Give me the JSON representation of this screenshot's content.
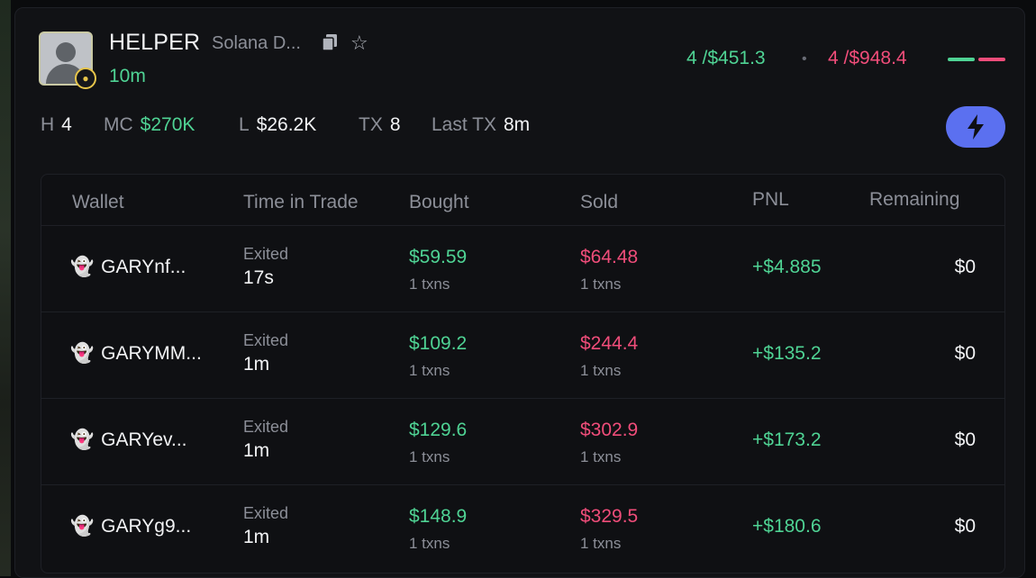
{
  "token": {
    "name": "HELPER",
    "subtitle": "Solana D...",
    "age": "10m",
    "icons": {
      "copy": "copy-icon",
      "star": "star-icon",
      "badge": "pill-icon"
    }
  },
  "summary": {
    "buys": "4 /$451.3",
    "separator": "•",
    "sells": "4 /$948.4",
    "colors": {
      "buy": "#4fd394",
      "sell": "#f04d7a"
    }
  },
  "stats": [
    {
      "label": "H",
      "value": "4"
    },
    {
      "label": "MC",
      "value": "$270K"
    },
    {
      "label": "L",
      "value": "$26.2K"
    },
    {
      "label": "TX",
      "value": "8"
    },
    {
      "label": "Last TX",
      "value": "8m"
    }
  ],
  "action": {
    "icon": "lightning-bolt-icon",
    "color": "#5b70f0"
  },
  "table": {
    "headers": {
      "wallet": "Wallet",
      "time": "Time in Trade",
      "bought": "Bought",
      "sold": "Sold",
      "pnl": "PNL",
      "remaining": "Remaining"
    },
    "rows": [
      {
        "ghost": "👻",
        "wallet": "GARYnf...",
        "status": "Exited",
        "duration": "17s",
        "bought": "$59.59",
        "bought_txns": "1 txns",
        "sold": "$64.48",
        "sold_txns": "1 txns",
        "pnl": "+$4.885",
        "remaining": "$0"
      },
      {
        "ghost": "👻",
        "wallet": "GARYMM...",
        "status": "Exited",
        "duration": "1m",
        "bought": "$109.2",
        "bought_txns": "1 txns",
        "sold": "$244.4",
        "sold_txns": "1 txns",
        "pnl": "+$135.2",
        "remaining": "$0"
      },
      {
        "ghost": "👻",
        "wallet": "GARYev...",
        "status": "Exited",
        "duration": "1m",
        "bought": "$129.6",
        "bought_txns": "1 txns",
        "sold": "$302.9",
        "sold_txns": "1 txns",
        "pnl": "+$173.2",
        "remaining": "$0"
      },
      {
        "ghost": "👻",
        "wallet": "GARYg9...",
        "status": "Exited",
        "duration": "1m",
        "bought": "$148.9",
        "bought_txns": "1 txns",
        "sold": "$329.5",
        "sold_txns": "1 txns",
        "pnl": "+$180.6",
        "remaining": "$0"
      }
    ]
  }
}
